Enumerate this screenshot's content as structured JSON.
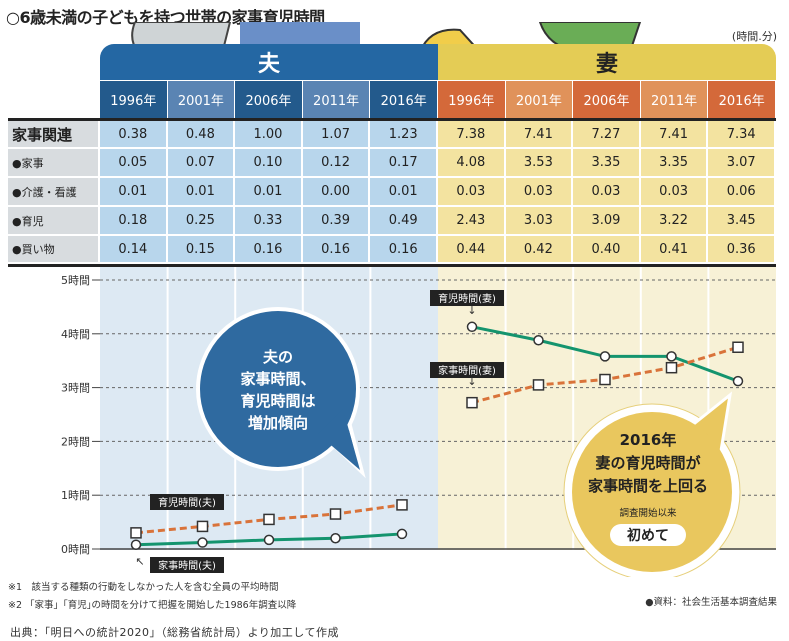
{
  "title": "○6歳未満の子どもを持つ世帯の家事育児時間",
  "unit": "(時間.分)",
  "groups": {
    "husband": "夫",
    "wife": "妻"
  },
  "years": [
    "1996年",
    "2001年",
    "2006年",
    "2011年",
    "2016年"
  ],
  "table": {
    "rows": [
      {
        "label": "家事関連",
        "husband": [
          "0.38",
          "0.48",
          "1.00",
          "1.07",
          "1.23"
        ],
        "wife": [
          "7.38",
          "7.41",
          "7.27",
          "7.41",
          "7.34"
        ]
      },
      {
        "label": "●家事",
        "husband": [
          "0.05",
          "0.07",
          "0.10",
          "0.12",
          "0.17"
        ],
        "wife": [
          "4.08",
          "3.53",
          "3.35",
          "3.35",
          "3.07"
        ]
      },
      {
        "label": "●介護・看護",
        "husband": [
          "0.01",
          "0.01",
          "0.01",
          "0.00",
          "0.01"
        ],
        "wife": [
          "0.03",
          "0.03",
          "0.03",
          "0.03",
          "0.06"
        ]
      },
      {
        "label": "●育児",
        "husband": [
          "0.18",
          "0.25",
          "0.33",
          "0.39",
          "0.49"
        ],
        "wife": [
          "2.43",
          "3.03",
          "3.09",
          "3.22",
          "3.45"
        ]
      },
      {
        "label": "●買い物",
        "husband": [
          "0.14",
          "0.15",
          "0.16",
          "0.16",
          "0.16"
        ],
        "wife": [
          "0.44",
          "0.42",
          "0.40",
          "0.41",
          "0.36"
        ]
      }
    ]
  },
  "chart_data": {
    "type": "line",
    "ylim": [
      0,
      5
    ],
    "yticks": [
      "0時間",
      "1時間",
      "2時間",
      "3時間",
      "4時間",
      "5時間"
    ],
    "categories": [
      "1996",
      "2001",
      "2006",
      "2011",
      "2016"
    ],
    "grid": true,
    "series": [
      {
        "name": "家事時間(夫)",
        "group": "husband",
        "values": [
          0.08,
          0.12,
          0.17,
          0.2,
          0.28
        ],
        "color": "#14946e",
        "style": "solid-circle"
      },
      {
        "name": "育児時間(夫)",
        "group": "husband",
        "values": [
          0.3,
          0.42,
          0.55,
          0.65,
          0.82
        ],
        "color": "#d9733a",
        "style": "dashed-square"
      },
      {
        "name": "家事時間(妻)",
        "group": "wife",
        "values": [
          4.13,
          3.88,
          3.58,
          3.58,
          3.12
        ],
        "color": "#14946e",
        "style": "solid-circle"
      },
      {
        "name": "育児時間(妻)",
        "group": "wife",
        "values": [
          2.72,
          3.05,
          3.15,
          3.37,
          3.75
        ],
        "color": "#d9733a",
        "style": "dashed-square"
      }
    ]
  },
  "bubble_husband": [
    "夫の",
    "家事時間、",
    "育児時間は",
    "増加傾向"
  ],
  "bubble_wife": {
    "year": "2016年",
    "line1": "妻の育児時間が",
    "line2": "家事時間を上回る",
    "small": "調査開始以来",
    "badge": "初めて"
  },
  "notes": [
    "※1　該当する種類の行動をしなかった人を含む全員の平均時間",
    "※2 「家事」｢育児｣の時間を分けて把握を開始した1986年調査以降"
  ],
  "source": "●資料：社会生活基本調査結果",
  "credit": "出典：「明日への統計2020」（総務省統計局）より加工して作成",
  "colors": {
    "husband_header": "#2467a3",
    "wife_header": "#e4cc55",
    "husband_year_dark": "#235a8c",
    "husband_year_light": "#5a84b3",
    "wife_year_dark": "#d4693a",
    "wife_year_light": "#e0925a",
    "husband_cell": "#b8d6ec",
    "wife_cell": "#f3e3a0"
  }
}
